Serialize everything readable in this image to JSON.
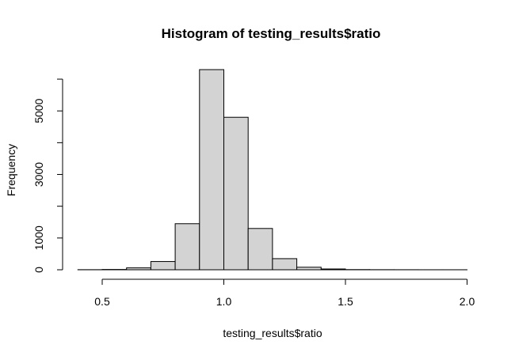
{
  "chart_data": {
    "type": "bar",
    "title": "Histogram of testing_results$ratio",
    "xlabel": "testing_results$ratio",
    "ylabel": "Frequency",
    "bin_width": 0.1,
    "bins": [
      {
        "start": 0.4,
        "end": 0.5,
        "count": 3
      },
      {
        "start": 0.5,
        "end": 0.6,
        "count": 10
      },
      {
        "start": 0.6,
        "end": 0.7,
        "count": 60
      },
      {
        "start": 0.7,
        "end": 0.8,
        "count": 260
      },
      {
        "start": 0.8,
        "end": 0.9,
        "count": 1450
      },
      {
        "start": 0.9,
        "end": 1.0,
        "count": 6300
      },
      {
        "start": 1.0,
        "end": 1.1,
        "count": 4800
      },
      {
        "start": 1.1,
        "end": 1.2,
        "count": 1300
      },
      {
        "start": 1.2,
        "end": 1.3,
        "count": 350
      },
      {
        "start": 1.3,
        "end": 1.4,
        "count": 80
      },
      {
        "start": 1.4,
        "end": 1.5,
        "count": 25
      },
      {
        "start": 1.5,
        "end": 1.6,
        "count": 6
      },
      {
        "start": 1.6,
        "end": 1.7,
        "count": 3
      },
      {
        "start": 1.7,
        "end": 1.8,
        "count": 2
      },
      {
        "start": 1.8,
        "end": 1.9,
        "count": 1
      },
      {
        "start": 1.9,
        "end": 2.0,
        "count": 1
      }
    ],
    "xlim": [
      0.4,
      2.0
    ],
    "ylim": [
      0,
      6300
    ],
    "x_ticks": [
      {
        "value": 0.5,
        "label": "0.5"
      },
      {
        "value": 1.0,
        "label": "1.0"
      },
      {
        "value": 1.5,
        "label": "1.5"
      },
      {
        "value": 2.0,
        "label": "2.0"
      }
    ],
    "y_ticks": [
      {
        "value": 0,
        "label": "0"
      },
      {
        "value": 1000,
        "label": "1000"
      },
      {
        "value": 3000,
        "label": "3000"
      },
      {
        "value": 5000,
        "label": "5000"
      }
    ],
    "y_minor_ticks": [
      2000,
      4000,
      6000
    ],
    "bar_fill": "#d3d3d3",
    "bar_stroke": "#000000",
    "grid": false,
    "legend": "none"
  }
}
